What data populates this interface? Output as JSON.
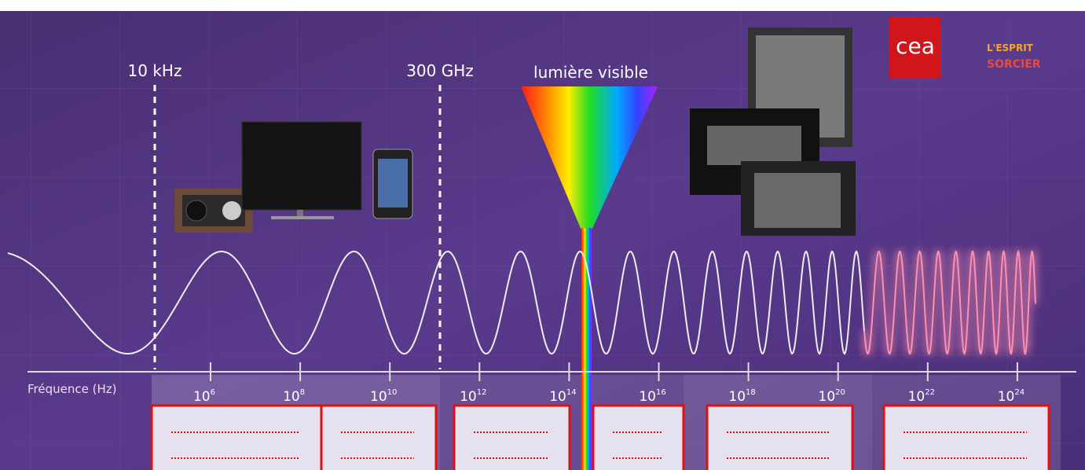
{
  "labels": {
    "low_limit": "10 kHz",
    "high_limit": "300 GHz",
    "visible_light": "lumière visible"
  },
  "axis": {
    "label": "Fréquence (Hz)",
    "ticks": [
      {
        "base": "10",
        "exponent": "6"
      },
      {
        "base": "10",
        "exponent": "8"
      },
      {
        "base": "10",
        "exponent": "10"
      },
      {
        "base": "10",
        "exponent": "12"
      },
      {
        "base": "10",
        "exponent": "14"
      },
      {
        "base": "10",
        "exponent": "16"
      },
      {
        "base": "10",
        "exponent": "18"
      },
      {
        "base": "10",
        "exponent": "20"
      },
      {
        "base": "10",
        "exponent": "22"
      },
      {
        "base": "10",
        "exponent": "24"
      }
    ]
  },
  "logos": {
    "cea": "cea",
    "esprit_sorcier": [
      "L'ESPRIT",
      "SORCIER"
    ]
  }
}
